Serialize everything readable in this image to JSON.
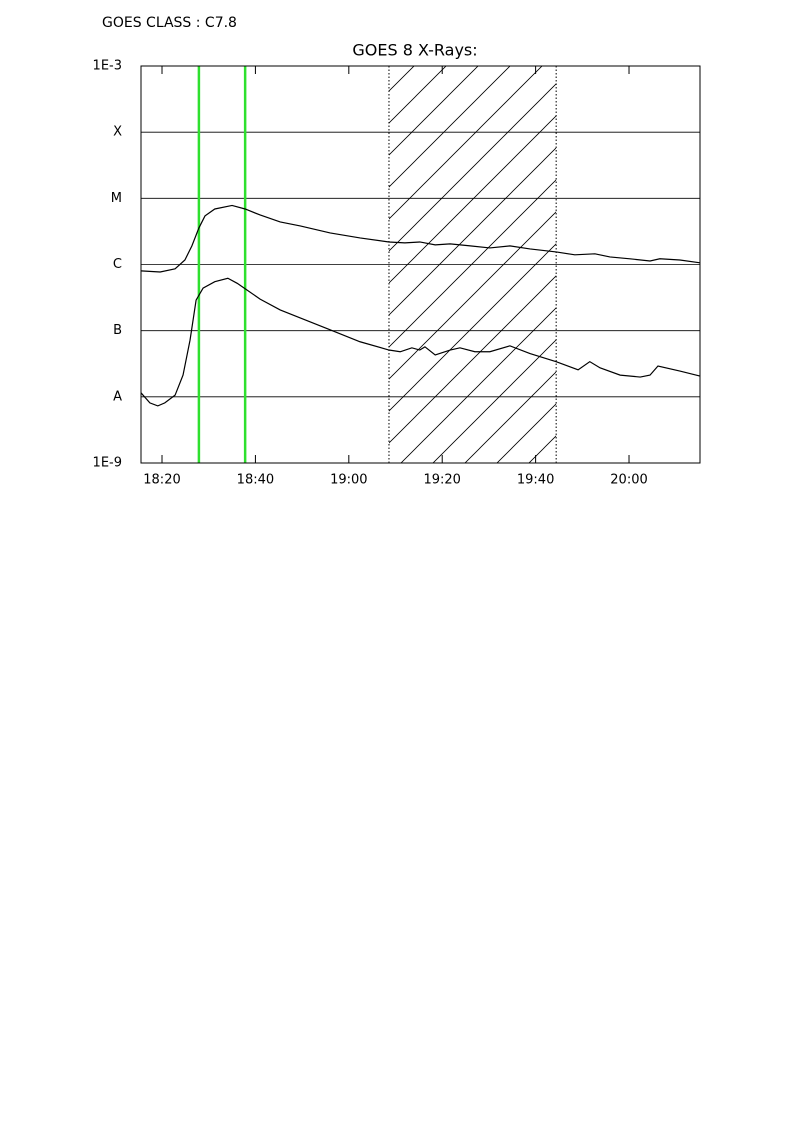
{
  "chart_data": {
    "type": "line",
    "header": "GOES CLASS : C7.8",
    "title": "GOES 8 X-Rays:",
    "log_scale": true,
    "grid": true,
    "xlim": [
      1095.5,
      1215.2
    ],
    "xticks": [
      {
        "value": 1100,
        "label": "18:20"
      },
      {
        "value": 1120,
        "label": "18:40"
      },
      {
        "value": 1140,
        "label": "19:00"
      },
      {
        "value": 1160,
        "label": "19:20"
      },
      {
        "value": 1180,
        "label": "19:40"
      },
      {
        "value": 1200,
        "label": "20:00"
      }
    ],
    "ylim": [
      1e-09,
      0.001
    ],
    "yticks": [
      {
        "value": 1e-09,
        "label": "1E-9"
      },
      {
        "value": 1e-08,
        "label": "A"
      },
      {
        "value": 1e-07,
        "label": "B"
      },
      {
        "value": 1e-06,
        "label": "C"
      },
      {
        "value": 1e-05,
        "label": "M"
      },
      {
        "value": 0.0001,
        "label": "X"
      },
      {
        "value": 0.001,
        "label": "1E-3"
      }
    ],
    "markers": [
      {
        "x": 1107.9,
        "color": "#2ee02e"
      },
      {
        "x": 1117.8,
        "color": "#2ee02e"
      }
    ],
    "shaded_span": [
      1148.6,
      1184.4
    ],
    "series": [
      {
        "color": "#000000",
        "x": [
          1095.5,
          1099.6,
          1102.8,
          1104.9,
          1106.4,
          1107.9,
          1109.2,
          1111.3,
          1115.0,
          1117.8,
          1121.0,
          1125.3,
          1129.6,
          1136.0,
          1142.4,
          1148.6,
          1152.0,
          1155.2,
          1158.5,
          1161.7,
          1166.0,
          1170.2,
          1174.5,
          1178.8,
          1184.4,
          1188.4,
          1192.7,
          1195.9,
          1200.2,
          1204.5,
          1206.6,
          1210.9,
          1215.2
        ],
        "values": [
          8e-07,
          7.7e-07,
          8.6e-07,
          1.17e-06,
          1.91e-06,
          3.57e-06,
          5.42e-06,
          6.9e-06,
          7.8e-06,
          6.9e-06,
          5.6e-06,
          4.4e-06,
          3.83e-06,
          3e-06,
          2.52e-06,
          2.19e-06,
          2.12e-06,
          2.19e-06,
          1.98e-06,
          2.05e-06,
          1.91e-06,
          1.78e-06,
          1.91e-06,
          1.72e-06,
          1.55e-06,
          1.4e-06,
          1.45e-06,
          1.3e-06,
          1.22e-06,
          1.13e-06,
          1.22e-06,
          1.17e-06,
          1.06e-06
        ]
      },
      {
        "color": "#000000",
        "x": [
          1095.5,
          1097.4,
          1099.1,
          1100.6,
          1102.8,
          1104.5,
          1106.0,
          1107.3,
          1108.8,
          1111.3,
          1114.1,
          1116.1,
          1117.8,
          1121.0,
          1125.3,
          1129.6,
          1136.0,
          1142.4,
          1148.6,
          1151.0,
          1153.5,
          1155.2,
          1156.3,
          1158.5,
          1161.7,
          1163.8,
          1167.0,
          1170.2,
          1174.5,
          1178.8,
          1184.4,
          1189.1,
          1191.6,
          1193.8,
          1198.1,
          1202.4,
          1204.5,
          1206.2,
          1210.9,
          1215.2
        ],
        "values": [
          1.15e-08,
          8.1e-09,
          7.3e-09,
          8.1e-09,
          1.06e-08,
          2.13e-08,
          7.2e-08,
          2.9e-07,
          4.4e-07,
          5.5e-07,
          6.2e-07,
          5.2e-07,
          4.3e-07,
          3e-07,
          2.06e-07,
          1.56e-07,
          1.03e-07,
          6.8e-08,
          5.1e-08,
          4.8e-08,
          5.5e-08,
          5.1e-08,
          5.7e-08,
          4.3e-08,
          5.1e-08,
          5.5e-08,
          4.8e-08,
          4.8e-08,
          5.9e-08,
          4.5e-08,
          3.4e-08,
          2.56e-08,
          3.4e-08,
          2.74e-08,
          2.13e-08,
          1.99e-08,
          2.13e-08,
          2.92e-08,
          2.45e-08,
          2.06e-08
        ]
      }
    ]
  }
}
